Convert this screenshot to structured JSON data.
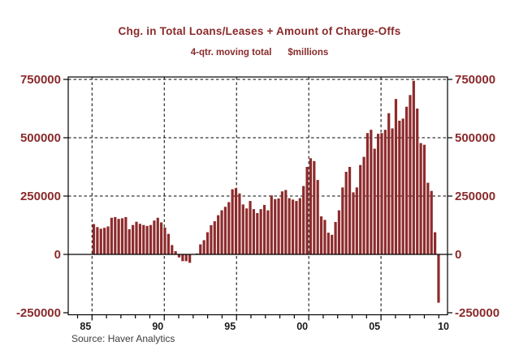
{
  "header": {
    "title": "Chg. in Total Loans/Leases + Amount of Charge-Offs",
    "subtitle_left": "4-qtr. moving total",
    "subtitle_right": "$millions"
  },
  "footer": {
    "source": "Source: Haver Analytics"
  },
  "colors": {
    "bar_fill": "#8e2b2c",
    "red_text": "#8a2a2b",
    "x_label_text": "#1a1a1a",
    "source_text": "#3d3d3d",
    "axis_line": "#000000",
    "background": "#ffffff"
  },
  "chart_data": {
    "type": "bar",
    "title": "Chg. in Total Loans/Leases + Amount of Charge-Offs",
    "subtitle": "4-qtr. moving total",
    "units_label": "$millions",
    "frequency": "quarterly",
    "start_period": "1985Q1",
    "end_period": "2009Q2",
    "values": [
      130000,
      117000,
      110000,
      114000,
      120000,
      157000,
      160000,
      152000,
      155000,
      160000,
      108000,
      126000,
      140000,
      131000,
      126000,
      122000,
      126000,
      145000,
      157000,
      137000,
      115000,
      88000,
      40000,
      14000,
      -13000,
      -29000,
      -29000,
      -36000,
      2000,
      4000,
      43000,
      61000,
      95000,
      125000,
      142000,
      168000,
      189000,
      204000,
      224000,
      279000,
      284000,
      261000,
      214000,
      197000,
      229000,
      194000,
      177000,
      194000,
      212000,
      189000,
      253000,
      237000,
      240000,
      270000,
      276000,
      241000,
      235000,
      229000,
      241000,
      293000,
      375000,
      412000,
      400000,
      319000,
      163000,
      148000,
      93000,
      84000,
      139000,
      189000,
      287000,
      354000,
      375000,
      266000,
      287000,
      383000,
      418000,
      520000,
      534000,
      453000,
      517000,
      520000,
      534000,
      605000,
      540000,
      666000,
      573000,
      582000,
      633000,
      683000,
      744000,
      625000,
      477000,
      470000,
      307000,
      272000,
      95000,
      -207000
    ],
    "ytick_values": [
      -250000,
      0,
      250000,
      500000,
      750000
    ],
    "ytick_labels": [
      "-250000",
      "0",
      "250000",
      "500000",
      "750000"
    ],
    "grid_y_values": [
      250000,
      500000,
      750000
    ],
    "xtick_years": [
      1985,
      1990,
      1995,
      2000,
      2005,
      2010
    ],
    "xtick_labels": [
      "85",
      "90",
      "95",
      "00",
      "05",
      "10"
    ],
    "grid_x_years": [
      1985,
      1990,
      1995,
      2000,
      2005
    ],
    "minor_tick_year_start": 1984,
    "minor_tick_year_end": 2009,
    "ylim": [
      -258000,
      760000
    ],
    "xlim_years": [
      1983.35,
      2009.6
    ],
    "grid": "dashed",
    "legend": "none",
    "source": "Source: Haver Analytics"
  }
}
